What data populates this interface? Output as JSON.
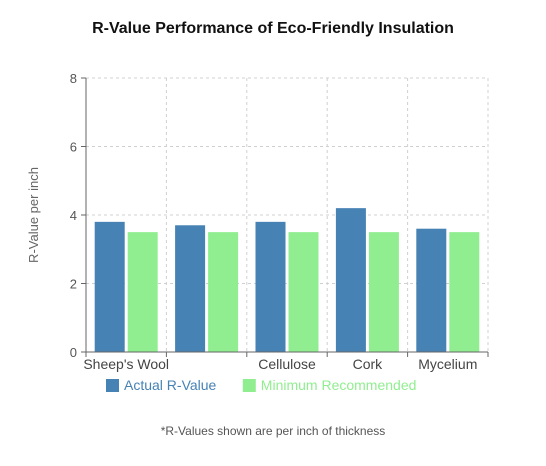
{
  "chart_data": {
    "type": "bar",
    "title": "R-Value Performance of Eco-Friendly Insulation",
    "xlabel": "",
    "ylabel": "R-Value per inch",
    "ylim": [
      0,
      8
    ],
    "yticks": [
      0,
      2,
      4,
      6,
      8
    ],
    "grid": true,
    "legend_position": "bottom",
    "categories": [
      "Sheep's Wool",
      "",
      "Cellulose",
      "Cork",
      "Mycelium"
    ],
    "series": [
      {
        "name": "Actual R-Value",
        "color": "#4682b4",
        "values": [
          3.8,
          3.7,
          3.8,
          4.2,
          3.6
        ]
      },
      {
        "name": "Minimum Recommended",
        "color": "#90ee90",
        "values": [
          3.5,
          3.5,
          3.5,
          3.5,
          3.5
        ]
      }
    ],
    "footnote": "*R-Values shown are per inch of thickness"
  }
}
